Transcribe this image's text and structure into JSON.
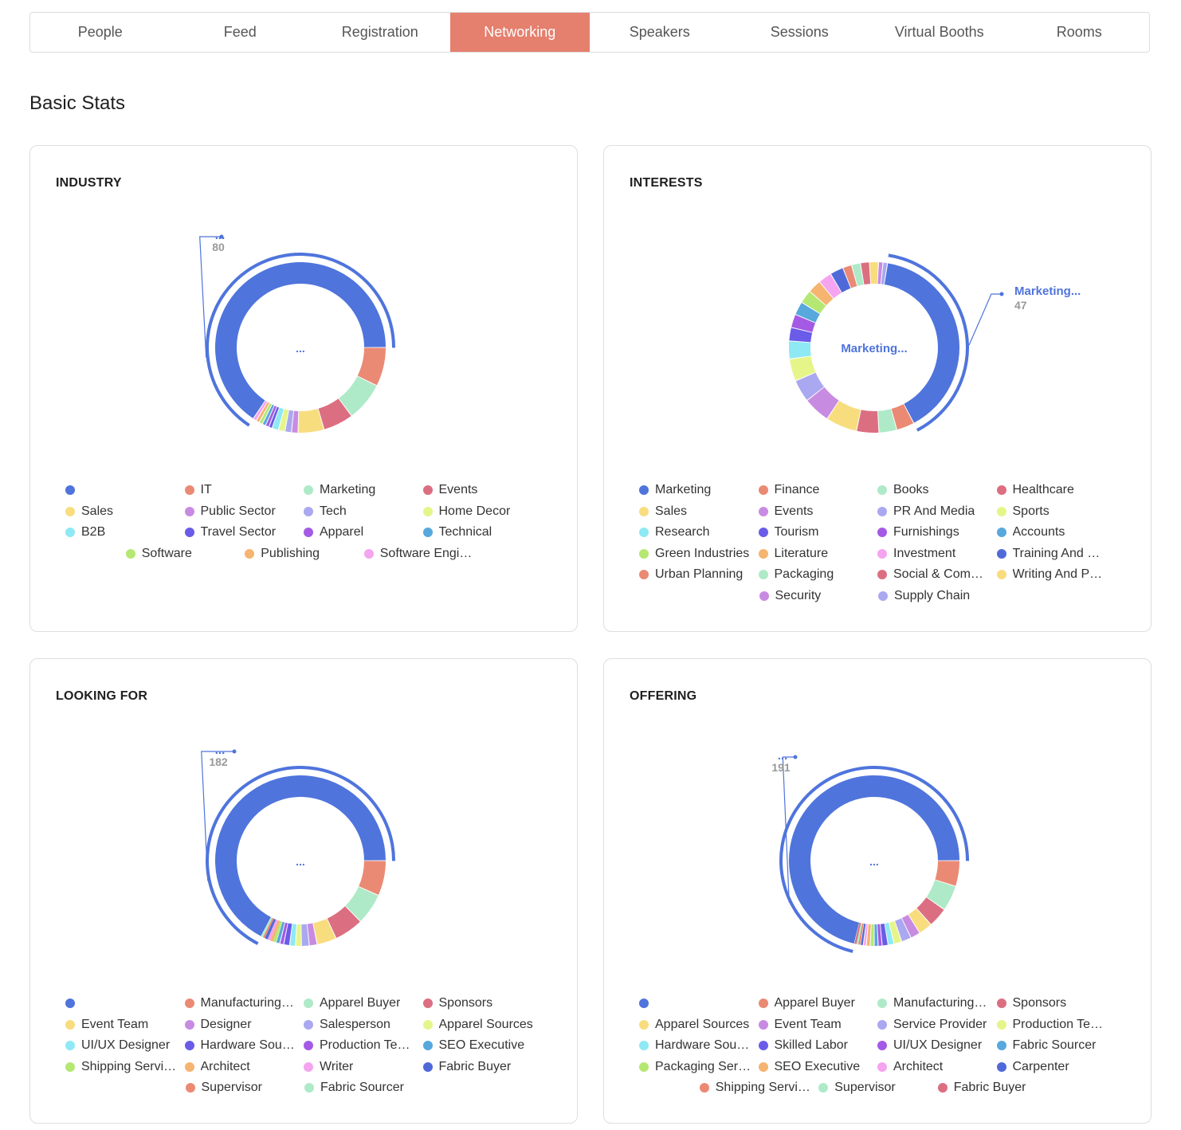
{
  "tabs": [
    {
      "label": "People",
      "active": false
    },
    {
      "label": "Feed",
      "active": false
    },
    {
      "label": "Registration",
      "active": false
    },
    {
      "label": "Networking",
      "active": true
    },
    {
      "label": "Speakers",
      "active": false
    },
    {
      "label": "Sessions",
      "active": false
    },
    {
      "label": "Virtual Booths",
      "active": false
    },
    {
      "label": "Rooms",
      "active": false
    }
  ],
  "section_title": "Basic Stats",
  "colors": {
    "accent": "#e57f6e",
    "palette": [
      "#4f74dc",
      "#ea8a74",
      "#aeeac8",
      "#dc6e81",
      "#f8dd7f",
      "#c88be2",
      "#a9a8f0",
      "#e6f58a",
      "#8ee9f4",
      "#6a5ce9",
      "#a45ae4",
      "#57a8dc",
      "#b5e873",
      "#f5b46f",
      "#f5a4f0"
    ]
  },
  "chart_data": [
    {
      "id": "industry",
      "type": "pie",
      "title": "INDUSTRY",
      "center_label": "...",
      "highlight": {
        "name": "...",
        "value": 80
      },
      "slices": [
        {
          "name": "",
          "value": 80,
          "color": "#4f74dc"
        },
        {
          "name": "IT",
          "value": 9,
          "color": "#ea8a74"
        },
        {
          "name": "Marketing",
          "value": 9,
          "color": "#aeeac8"
        },
        {
          "name": "Events",
          "value": 7,
          "color": "#dc6e81"
        },
        {
          "name": "Sales",
          "value": 6,
          "color": "#f8dd7f"
        },
        {
          "name": "Public Sector",
          "value": 1.5,
          "color": "#c88be2"
        },
        {
          "name": "Tech",
          "value": 1.5,
          "color": "#a9a8f0"
        },
        {
          "name": "Home Decor",
          "value": 1.5,
          "color": "#e6f58a"
        },
        {
          "name": "B2B",
          "value": 1.5,
          "color": "#8ee9f4"
        },
        {
          "name": "Travel Sector",
          "value": 0.8,
          "color": "#6a5ce9"
        },
        {
          "name": "Apparel",
          "value": 0.8,
          "color": "#a45ae4"
        },
        {
          "name": "Technical",
          "value": 0.8,
          "color": "#57a8dc"
        },
        {
          "name": "Software",
          "value": 0.8,
          "color": "#b5e873"
        },
        {
          "name": "Publishing",
          "value": 0.8,
          "color": "#f5b46f"
        },
        {
          "name": "Software Engi…",
          "value": 0.8,
          "color": "#f5a4f0"
        }
      ]
    },
    {
      "id": "interests",
      "type": "pie",
      "title": "INTERESTS",
      "center_label": "Marketing...",
      "highlight": {
        "name": "Marketing...",
        "value": 47
      },
      "slices": [
        {
          "name": "Marketing",
          "value": 47,
          "color": "#4f74dc"
        },
        {
          "name": "Finance",
          "value": 4,
          "color": "#ea8a74"
        },
        {
          "name": "Books",
          "value": 4,
          "color": "#aeeac8"
        },
        {
          "name": "Healthcare",
          "value": 5,
          "color": "#dc6e81"
        },
        {
          "name": "Sales",
          "value": 7,
          "color": "#f8dd7f"
        },
        {
          "name": "Events",
          "value": 6,
          "color": "#c88be2"
        },
        {
          "name": "PR And Media",
          "value": 5,
          "color": "#a9a8f0"
        },
        {
          "name": "Sports",
          "value": 5,
          "color": "#e6f58a"
        },
        {
          "name": "Research",
          "value": 4,
          "color": "#8ee9f4"
        },
        {
          "name": "Tourism",
          "value": 3,
          "color": "#6a5ce9"
        },
        {
          "name": "Furnishings",
          "value": 3,
          "color": "#a45ae4"
        },
        {
          "name": "Accounts",
          "value": 3,
          "color": "#57a8dc"
        },
        {
          "name": "Green Industries",
          "value": 3,
          "color": "#b5e873"
        },
        {
          "name": "Literature",
          "value": 3,
          "color": "#f5b46f"
        },
        {
          "name": "Investment",
          "value": 3,
          "color": "#f5a4f0"
        },
        {
          "name": "Training And …",
          "value": 3,
          "color": "#4f6ad8"
        },
        {
          "name": "Urban Planning",
          "value": 2,
          "color": "#ea8a74"
        },
        {
          "name": "Packaging",
          "value": 2,
          "color": "#aeeac8"
        },
        {
          "name": "Social & Com…",
          "value": 2,
          "color": "#dc6e81"
        },
        {
          "name": "Writing And P…",
          "value": 2,
          "color": "#f8dd7f"
        },
        {
          "name": "Security",
          "value": 1,
          "color": "#c88be2"
        },
        {
          "name": "Supply Chain",
          "value": 1,
          "color": "#a9a8f0"
        }
      ]
    },
    {
      "id": "looking_for",
      "type": "pie",
      "title": "LOOKING FOR",
      "center_label": "...",
      "highlight": {
        "name": "...",
        "value": 182
      },
      "slices": [
        {
          "name": "",
          "value": 182,
          "color": "#4f74dc"
        },
        {
          "name": "Manufacturing…",
          "value": 18,
          "color": "#ea8a74"
        },
        {
          "name": "Apparel Buyer",
          "value": 16,
          "color": "#aeeac8"
        },
        {
          "name": "Sponsors",
          "value": 15,
          "color": "#dc6e81"
        },
        {
          "name": "Event Team",
          "value": 10,
          "color": "#f8dd7f"
        },
        {
          "name": "Designer",
          "value": 4,
          "color": "#c88be2"
        },
        {
          "name": "Salesperson",
          "value": 4,
          "color": "#a9a8f0"
        },
        {
          "name": "Apparel Sources",
          "value": 3,
          "color": "#e6f58a"
        },
        {
          "name": "UI/UX Designer",
          "value": 3,
          "color": "#8ee9f4"
        },
        {
          "name": "Hardware Sou…",
          "value": 3,
          "color": "#6a5ce9"
        },
        {
          "name": "Production Te…",
          "value": 2,
          "color": "#a45ae4"
        },
        {
          "name": "SEO Executive",
          "value": 2,
          "color": "#57a8dc"
        },
        {
          "name": "Shipping Servi…",
          "value": 1.5,
          "color": "#b5e873"
        },
        {
          "name": "Architect",
          "value": 1.5,
          "color": "#f5b46f"
        },
        {
          "name": "Writer",
          "value": 1.5,
          "color": "#f5a4f0"
        },
        {
          "name": "Fabric Buyer",
          "value": 1.5,
          "color": "#4f6ad8"
        },
        {
          "name": "Supervisor",
          "value": 1,
          "color": "#ea8a74"
        },
        {
          "name": "Fabric Sourcer",
          "value": 1,
          "color": "#aeeac8"
        }
      ]
    },
    {
      "id": "offering",
      "type": "pie",
      "title": "OFFERING",
      "center_label": "...",
      "highlight": {
        "name": "...",
        "value": 191
      },
      "slices": [
        {
          "name": "",
          "value": 191,
          "color": "#4f74dc"
        },
        {
          "name": "Apparel Buyer",
          "value": 13,
          "color": "#ea8a74"
        },
        {
          "name": "Manufacturing…",
          "value": 13,
          "color": "#aeeac8"
        },
        {
          "name": "Sponsors",
          "value": 10,
          "color": "#dc6e81"
        },
        {
          "name": "Apparel Sources",
          "value": 7,
          "color": "#f8dd7f"
        },
        {
          "name": "Event Team",
          "value": 5,
          "color": "#c88be2"
        },
        {
          "name": "Service Provider",
          "value": 5,
          "color": "#a9a8f0"
        },
        {
          "name": "Production Te…",
          "value": 4,
          "color": "#e6f58a"
        },
        {
          "name": "Hardware Sou…",
          "value": 3,
          "color": "#8ee9f4"
        },
        {
          "name": "Skilled Labor",
          "value": 3,
          "color": "#6a5ce9"
        },
        {
          "name": "UI/UX Designer",
          "value": 2,
          "color": "#a45ae4"
        },
        {
          "name": "Fabric Sourcer",
          "value": 2,
          "color": "#57a8dc"
        },
        {
          "name": "Packaging Ser…",
          "value": 2,
          "color": "#b5e873"
        },
        {
          "name": "SEO Executive",
          "value": 2,
          "color": "#f5b46f"
        },
        {
          "name": "Architect",
          "value": 1.5,
          "color": "#f5a4f0"
        },
        {
          "name": "Carpenter",
          "value": 1.5,
          "color": "#4f6ad8"
        },
        {
          "name": "Shipping Servi…",
          "value": 1,
          "color": "#ea8a74"
        },
        {
          "name": "Supervisor",
          "value": 1,
          "color": "#aeeac8"
        },
        {
          "name": "Fabric Buyer",
          "value": 1,
          "color": "#dc6e81"
        }
      ]
    }
  ]
}
